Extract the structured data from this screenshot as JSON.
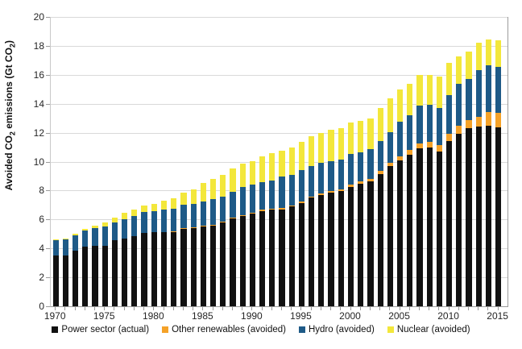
{
  "chart_data": {
    "type": "bar",
    "stacked": true,
    "title": "",
    "y_axis": {
      "label": "Avoided CO2 emissions (Gt CO2)",
      "label_parts": [
        "Avoided CO",
        "2",
        " emissions (Gt CO",
        "2",
        ")"
      ],
      "min": 0,
      "max": 20,
      "step": 2,
      "tick_labels": [
        "0",
        "2",
        "4",
        "6",
        "8",
        "10",
        "12",
        "14",
        "16",
        "18",
        "20"
      ]
    },
    "x_axis": {
      "tick_years": [
        1970,
        1975,
        1980,
        1985,
        1990,
        1995,
        2000,
        2005,
        2010,
        2015
      ]
    },
    "years": [
      1970,
      1971,
      1972,
      1973,
      1974,
      1975,
      1976,
      1977,
      1978,
      1979,
      1980,
      1981,
      1982,
      1983,
      1984,
      1985,
      1986,
      1987,
      1988,
      1989,
      1990,
      1991,
      1992,
      1993,
      1994,
      1995,
      1996,
      1997,
      1998,
      1999,
      2000,
      2001,
      2002,
      2003,
      2004,
      2005,
      2006,
      2007,
      2008,
      2009,
      2010,
      2011,
      2012,
      2013,
      2014,
      2015
    ],
    "series": [
      {
        "key": "power-sector",
        "label": "Power sector (actual)",
        "color": "#111111",
        "values": [
          3.5,
          3.52,
          3.82,
          4.12,
          4.18,
          4.2,
          4.55,
          4.7,
          4.82,
          5.05,
          5.1,
          5.12,
          5.15,
          5.35,
          5.4,
          5.52,
          5.58,
          5.8,
          6.06,
          6.26,
          6.4,
          6.6,
          6.66,
          6.71,
          6.9,
          7.15,
          7.5,
          7.7,
          7.85,
          7.95,
          8.25,
          8.45,
          8.62,
          9.15,
          9.7,
          10.1,
          10.48,
          10.9,
          10.95,
          10.7,
          11.4,
          11.95,
          12.3,
          12.4,
          12.5,
          12.35
        ]
      },
      {
        "key": "other-renewables",
        "label": "Other renewables (avoided)",
        "color": "#F5A228",
        "values": [
          0,
          0,
          0,
          0,
          0,
          0,
          0,
          0,
          0,
          0.01,
          0.01,
          0.02,
          0.02,
          0.03,
          0.04,
          0.04,
          0.05,
          0.05,
          0.05,
          0.06,
          0.06,
          0.07,
          0.07,
          0.08,
          0.08,
          0.09,
          0.1,
          0.1,
          0.12,
          0.13,
          0.15,
          0.16,
          0.18,
          0.2,
          0.24,
          0.28,
          0.32,
          0.36,
          0.42,
          0.46,
          0.52,
          0.55,
          0.58,
          0.7,
          0.95,
          1.0
        ]
      },
      {
        "key": "hydro",
        "label": "Hydro (avoided)",
        "color": "#1E5A87",
        "values": [
          1.05,
          1.1,
          1.1,
          1.1,
          1.22,
          1.3,
          1.25,
          1.33,
          1.42,
          1.44,
          1.48,
          1.55,
          1.58,
          1.62,
          1.62,
          1.66,
          1.77,
          1.73,
          1.78,
          1.92,
          1.93,
          1.9,
          1.98,
          2.2,
          2.13,
          2.18,
          2.1,
          2.1,
          2.08,
          2.08,
          2.15,
          2.05,
          2.05,
          2.08,
          2.1,
          2.4,
          2.42,
          2.64,
          2.58,
          2.55,
          2.7,
          2.9,
          2.84,
          3.2,
          3.2,
          3.18
        ]
      },
      {
        "key": "nuclear",
        "label": "Nuclear (avoided)",
        "color": "#F3E73B",
        "values": [
          0.05,
          0.08,
          0.1,
          0.15,
          0.2,
          0.27,
          0.32,
          0.42,
          0.45,
          0.44,
          0.51,
          0.61,
          0.7,
          0.85,
          1.0,
          1.28,
          1.4,
          1.5,
          1.65,
          1.61,
          1.63,
          1.8,
          1.89,
          1.76,
          1.85,
          1.93,
          2.05,
          2.1,
          2.15,
          2.16,
          2.13,
          2.16,
          2.15,
          2.27,
          2.31,
          2.22,
          2.18,
          2.1,
          2.05,
          2.19,
          2.18,
          1.9,
          1.88,
          1.9,
          1.8,
          1.87
        ]
      }
    ],
    "legend_position": "bottom",
    "grid": true,
    "colors": {
      "background": "#FFFFFF",
      "gridline": "#D9D9D9",
      "axis": "#9B9B9B",
      "text": "#262626"
    }
  }
}
